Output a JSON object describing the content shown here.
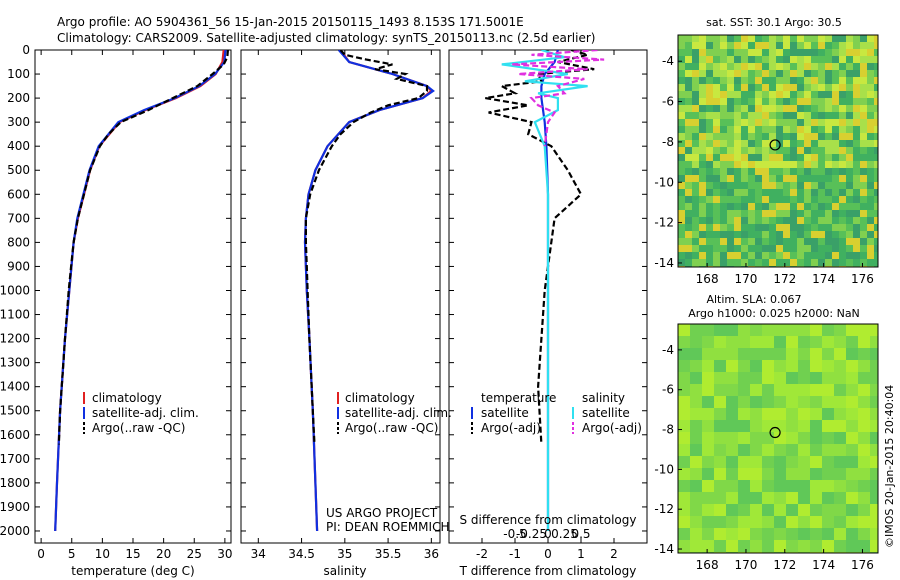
{
  "header": {
    "line1": "Argo profile: AO 5904361_56 15-Jan-2015 20150115_1493 8.153S 171.5001E",
    "line2": "Climatology: CARS2009. Satellite-adjusted climatology: synTS_20150113.nc (2.5d earlier)"
  },
  "colors": {
    "climatology": "#e02020",
    "satellite": "#1030e0",
    "argo": "#000000",
    "sat_salt": "#30e0f0",
    "argo_salt": "#e030e0"
  },
  "chart_data": [
    {
      "type": "line",
      "xlabel": "temperature (deg C)",
      "xlim": [
        -1,
        31
      ],
      "ylim": [
        2050,
        0
      ],
      "x_ticks": [
        0,
        5,
        10,
        15,
        20,
        25,
        30
      ],
      "y_ticks": [
        0,
        100,
        200,
        300,
        400,
        500,
        600,
        700,
        800,
        900,
        1000,
        1100,
        1200,
        1300,
        1400,
        1500,
        1600,
        1700,
        1800,
        1900,
        2000
      ],
      "legend": [
        "climatology",
        "satellite-adj. clim.",
        "Argo(..raw -QC)"
      ],
      "series": [
        {
          "name": "climatology",
          "depth": [
            0,
            50,
            100,
            150,
            200,
            250,
            300,
            400,
            500,
            600,
            700,
            800,
            1000,
            1200,
            1500,
            1800,
            2000
          ],
          "values": [
            29.8,
            29.6,
            28.5,
            26,
            22,
            17,
            12.8,
            9.5,
            8,
            7,
            6,
            5.3,
            4.6,
            3.9,
            3.1,
            2.6,
            2.3
          ]
        },
        {
          "name": "satellite-adj. clim.",
          "depth": [
            0,
            50,
            100,
            150,
            200,
            250,
            300,
            400,
            500,
            600,
            700,
            800,
            1000,
            1200,
            1500,
            1800,
            2000
          ],
          "values": [
            30.1,
            29.9,
            28.4,
            25.8,
            21.8,
            16.8,
            12.6,
            9.4,
            7.9,
            6.9,
            5.9,
            5.3,
            4.6,
            3.9,
            3.1,
            2.6,
            2.3
          ]
        },
        {
          "name": "Argo(..raw -QC)",
          "depth": [
            0,
            30,
            60,
            100,
            150,
            200,
            250,
            300,
            350,
            400,
            500,
            600,
            700,
            800,
            900,
            1000,
            1200,
            1500,
            1640
          ],
          "values": [
            30.5,
            30.4,
            29.8,
            28,
            25.5,
            21.5,
            17.5,
            13,
            11,
            9.6,
            8,
            7,
            6,
            5.3,
            4.9,
            4.5,
            3.9,
            3.1,
            2.9
          ]
        }
      ]
    },
    {
      "type": "line",
      "xlabel": "salinity",
      "xlim": [
        33.8,
        36.1
      ],
      "ylim": [
        2050,
        0
      ],
      "x_ticks": [
        34,
        34.5,
        35,
        35.5,
        36
      ],
      "x_tick_labels": [
        "34",
        "34.5",
        "35",
        "35.5",
        "36"
      ],
      "legend": [
        "climatology",
        "satellite-adj. clim.",
        "Argo(..raw -QC)"
      ],
      "annotation": [
        "US ARGO PROJECT",
        "PI: DEAN ROEMMICH"
      ],
      "series": [
        {
          "name": "climatology",
          "depth": [
            0,
            50,
            100,
            150,
            170,
            200,
            250,
            300,
            400,
            500,
            600,
            700,
            800,
            1000,
            1200,
            1500,
            1800,
            2000
          ],
          "values": [
            34.95,
            35.05,
            35.55,
            35.95,
            36.0,
            35.9,
            35.4,
            35.05,
            34.8,
            34.66,
            34.58,
            34.55,
            34.54,
            34.56,
            34.59,
            34.63,
            34.66,
            34.68
          ]
        },
        {
          "name": "satellite-adj. clim.",
          "depth": [
            0,
            50,
            100,
            150,
            170,
            200,
            250,
            300,
            400,
            500,
            600,
            700,
            800,
            1000,
            1200,
            1500,
            1800,
            2000
          ],
          "values": [
            34.93,
            35.05,
            35.55,
            35.95,
            36.02,
            35.9,
            35.4,
            35.05,
            34.8,
            34.66,
            34.58,
            34.55,
            34.54,
            34.56,
            34.59,
            34.63,
            34.66,
            34.68
          ]
        },
        {
          "name": "Argo(..raw -QC)",
          "depth": [
            0,
            20,
            40,
            60,
            80,
            100,
            120,
            150,
            170,
            200,
            230,
            260,
            300,
            350,
            400,
            500,
            600,
            700,
            800,
            900,
            1000,
            1200,
            1500,
            1640
          ],
          "values": [
            34.95,
            35.0,
            35.25,
            35.55,
            35.35,
            35.7,
            35.6,
            35.95,
            35.95,
            35.85,
            35.5,
            35.3,
            35.1,
            34.95,
            34.85,
            34.7,
            34.6,
            34.55,
            34.55,
            34.56,
            34.57,
            34.59,
            34.63,
            34.65
          ]
        }
      ]
    },
    {
      "type": "line",
      "xlabel": "T difference from climatology",
      "xlabel_top": "S difference from climatology",
      "xlim": [
        -3,
        3
      ],
      "ylim": [
        2050,
        0
      ],
      "x_ticks": [
        -2,
        -1,
        0,
        1,
        2
      ],
      "x_top_ticks": [
        -0.5,
        -0.25,
        0,
        0.25,
        0.5
      ],
      "x_top_labels": [
        "-0.5",
        "-0.25",
        "0",
        "0.25",
        "0.5"
      ],
      "legend_temperature": {
        "title": "temperature",
        "items": [
          "satellite",
          "Argo(-adj)"
        ]
      },
      "legend_salinity": {
        "title": "salinity",
        "items": [
          "satellite",
          "Argo(-adj)"
        ]
      },
      "series": [
        {
          "name": "temperature satellite",
          "depth": [
            0,
            50,
            100,
            150,
            200,
            300,
            400,
            600,
            1000,
            1500,
            2000
          ],
          "values": [
            0.3,
            0.2,
            -0.1,
            -0.2,
            -0.2,
            -0.1,
            -0.05,
            0,
            0,
            0,
            0
          ]
        },
        {
          "name": "temperature Argo(-adj)",
          "depth": [
            0,
            20,
            50,
            80,
            100,
            130,
            150,
            180,
            200,
            230,
            260,
            300,
            350,
            400,
            500,
            550,
            600,
            650,
            700,
            800,
            1000,
            1200,
            1400,
            1640
          ],
          "values": [
            0.7,
            1.2,
            0.3,
            1.4,
            -0.3,
            -0.2,
            -1.4,
            -1.0,
            -1.9,
            -0.6,
            -1.8,
            -0.5,
            -0.6,
            0.1,
            0.6,
            0.8,
            1.0,
            0.6,
            0.2,
            0.1,
            -0.1,
            -0.2,
            -0.3,
            -0.2
          ]
        },
        {
          "name": "salinity satellite",
          "depth": [
            0,
            30,
            60,
            100,
            130,
            150,
            180,
            200,
            250,
            300,
            400,
            600,
            1000,
            1500,
            2000
          ],
          "values": [
            -0.2,
            0.5,
            -1.4,
            0.6,
            -0.7,
            1.2,
            -0.3,
            0.3,
            0.3,
            -0.4,
            -0.1,
            0,
            0,
            0,
            0
          ]
        },
        {
          "name": "salinity Argo(-adj)",
          "depth": [
            0,
            20,
            40,
            60,
            80,
            100,
            120,
            150,
            180,
            200,
            230,
            260,
            300,
            400
          ],
          "values": [
            1.5,
            -0.5,
            1.7,
            -1.1,
            1.2,
            -0.9,
            1.1,
            0.3,
            0.5,
            -0.5,
            -0.3,
            0.2,
            0,
            -0.1
          ]
        }
      ]
    },
    {
      "type": "heatmap",
      "title": "sat. SST: 30.1  Argo: 30.5",
      "x_ticks": [
        168,
        170,
        172,
        174,
        176
      ],
      "y_ticks": [
        -4,
        -6,
        -8,
        -10,
        -12,
        -14
      ],
      "xlim": [
        166.5,
        176.8
      ],
      "ylim": [
        -14.2,
        -2.7
      ],
      "marker": [
        171.5,
        -8.15
      ]
    },
    {
      "type": "heatmap",
      "title_line1": "Altim. SLA: 0.067",
      "title_line2": "Argo h1000: 0.025 h2000: NaN",
      "x_ticks": [
        168,
        170,
        172,
        174,
        176
      ],
      "y_ticks": [
        -4,
        -6,
        -8,
        -10,
        -12,
        -14
      ],
      "xlim": [
        166.5,
        176.8
      ],
      "ylim": [
        -14.2,
        -2.7
      ],
      "marker": [
        171.5,
        -8.15
      ]
    }
  ],
  "credit": "©IMOS 20-Jan-2015 20:40:04"
}
